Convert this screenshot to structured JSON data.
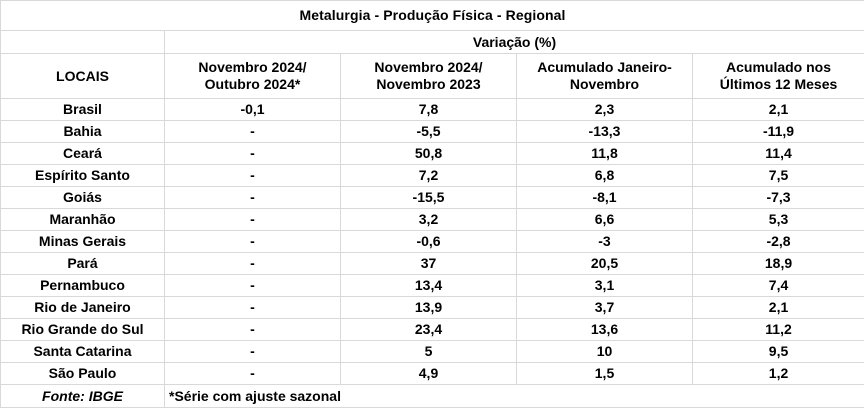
{
  "title": "Metalurgia - Produção Física - Regional",
  "variation_label": "Variação (%)",
  "locais_header": "LOCAIS",
  "column_headers": [
    [
      "Novembro 2024/",
      "Outubro 2024*"
    ],
    [
      "Novembro 2024/",
      "Novembro 2023"
    ],
    [
      "Acumulado Janeiro-",
      "Novembro"
    ],
    [
      "Acumulado nos",
      "Últimos 12 Meses"
    ]
  ],
  "rows": [
    {
      "local": "Brasil",
      "values": [
        "-0,1",
        "7,8",
        "2,3",
        "2,1"
      ]
    },
    {
      "local": "Bahia",
      "values": [
        "-",
        "-5,5",
        "-13,3",
        "-11,9"
      ]
    },
    {
      "local": "Ceará",
      "values": [
        "-",
        "50,8",
        "11,8",
        "11,4"
      ]
    },
    {
      "local": "Espírito Santo",
      "values": [
        "-",
        "7,2",
        "6,8",
        "7,5"
      ]
    },
    {
      "local": "Goiás",
      "values": [
        "-",
        "-15,5",
        "-8,1",
        "-7,3"
      ]
    },
    {
      "local": "Maranhão",
      "values": [
        "-",
        "3,2",
        "6,6",
        "5,3"
      ]
    },
    {
      "local": "Minas Gerais",
      "values": [
        "-",
        "-0,6",
        "-3",
        "-2,8"
      ]
    },
    {
      "local": "Pará",
      "values": [
        "-",
        "37",
        "20,5",
        "18,9"
      ]
    },
    {
      "local": "Pernambuco",
      "values": [
        "-",
        "13,4",
        "3,1",
        "7,4"
      ]
    },
    {
      "local": "Rio de Janeiro",
      "values": [
        "-",
        "13,9",
        "3,7",
        "2,1"
      ]
    },
    {
      "local": "Rio Grande do Sul",
      "values": [
        "-",
        "23,4",
        "13,6",
        "11,2"
      ]
    },
    {
      "local": "Santa Catarina",
      "values": [
        "-",
        "5",
        "10",
        "9,5"
      ]
    },
    {
      "local": "São Paulo",
      "values": [
        "-",
        "4,9",
        "1,5",
        "1,2"
      ]
    }
  ],
  "source": "Fonte: IBGE",
  "footnote": "*Série com ajuste sazonal"
}
